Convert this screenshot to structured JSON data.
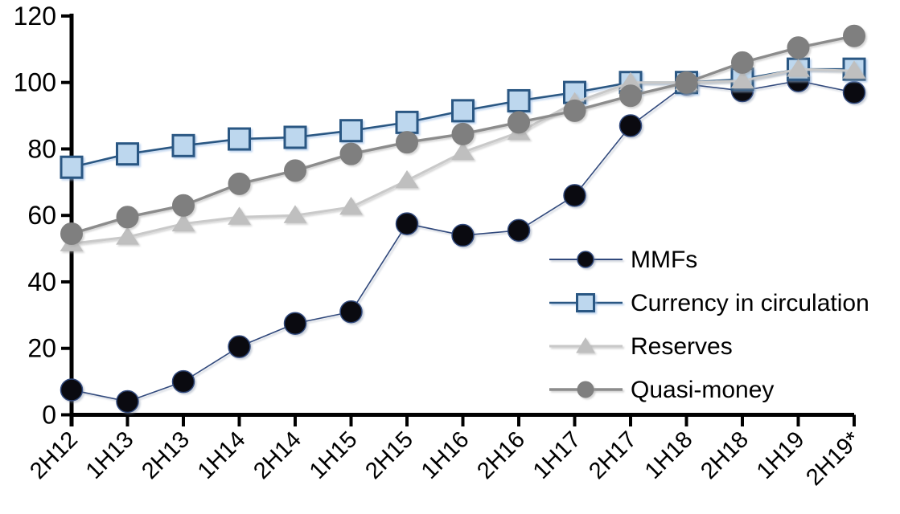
{
  "chart_data": {
    "type": "line",
    "title": "",
    "xlabel": "",
    "ylabel": "",
    "ylim": [
      0,
      120
    ],
    "y_ticks": [
      0,
      20,
      40,
      60,
      80,
      100,
      120
    ],
    "grid": false,
    "legend_position": "center-right",
    "categories": [
      "2H12",
      "1H13",
      "2H13",
      "1H14",
      "2H14",
      "1H15",
      "2H15",
      "1H16",
      "2H16",
      "1H17",
      "2H17",
      "1H18",
      "2H18",
      "1H19",
      "2H19*"
    ],
    "index_note": "all series equal 100 at 1H18",
    "series": [
      {
        "name": "MMFs",
        "marker": "circle",
        "line_color": "#31497C",
        "line_width": 1.6,
        "marker_fill": "#0A0A10",
        "marker_stroke": "#31497C",
        "marker_stroke_width": 1.5,
        "shadow": "shadow-dark",
        "values": [
          7.5,
          4,
          10,
          20.5,
          27.5,
          31,
          57.5,
          54,
          55.5,
          66,
          87,
          99.5,
          97.5,
          100.5,
          97
        ]
      },
      {
        "name": "Currency in circulation",
        "marker": "square",
        "line_color": "#2A5783",
        "line_width": 2.6,
        "marker_fill": "#BDD7EE",
        "marker_stroke": "#2A5783",
        "marker_stroke_width": 3,
        "shadow": "shadow-blue",
        "values": [
          74.5,
          78.5,
          81,
          83,
          83.5,
          85.5,
          88,
          91.5,
          94.5,
          97,
          100,
          100,
          101,
          104,
          104
        ]
      },
      {
        "name": "Reserves",
        "marker": "triangle",
        "line_color": "#C9C9C9",
        "line_width": 3,
        "marker_fill": "#BFBFBF",
        "marker_stroke": "#BFBFBF",
        "marker_stroke_width": 1,
        "shadow": "shadow-gray",
        "values": [
          51.5,
          53.5,
          57.5,
          59.5,
          60,
          62.5,
          70.5,
          79,
          85,
          94,
          100,
          100,
          100.5,
          104,
          103.5
        ]
      },
      {
        "name": "Quasi-money",
        "marker": "circle",
        "line_color": "#8C8C8C",
        "line_width": 3.4,
        "marker_fill": "#7F7F7F",
        "marker_stroke": "#7F7F7F",
        "marker_stroke_width": 1,
        "shadow": "shadow-gray",
        "values": [
          54.5,
          59.5,
          63,
          69.5,
          73.5,
          78.5,
          82,
          84.5,
          88,
          91.5,
          96,
          100,
          106,
          110.5,
          114
        ]
      }
    ]
  }
}
